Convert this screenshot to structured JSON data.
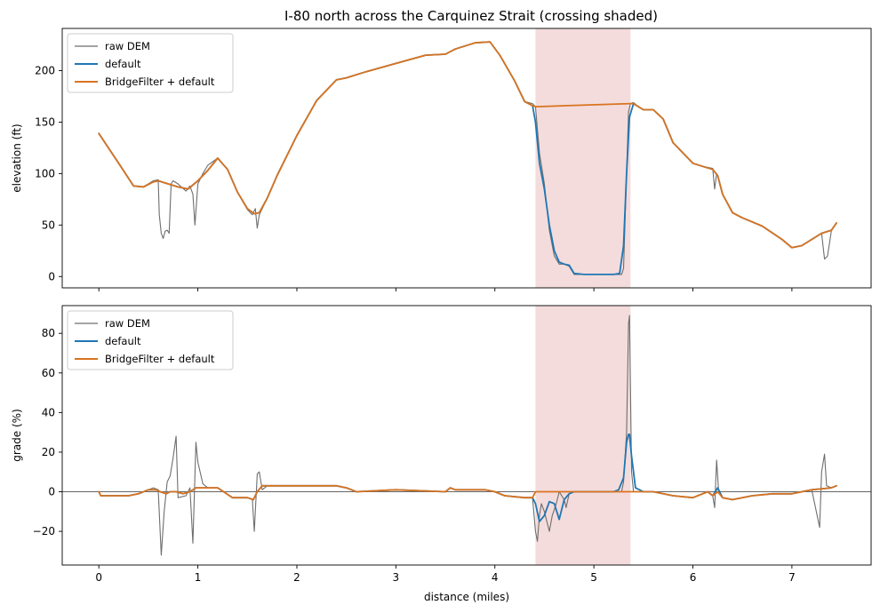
{
  "title": "I-80 north across the Carquinez Strait (crossing shaded)",
  "colors": {
    "raw": "#6e6e6e",
    "default": "#1f77b4",
    "bridge": "#d9731f",
    "shade": "#f4dcdc",
    "zero": "#333333"
  },
  "chart_data": [
    {
      "type": "line",
      "title": "I-80 north across the Carquinez Strait (crossing shaded)",
      "xlabel": "",
      "ylabel": "elevation (ft)",
      "xlim": [
        -0.37,
        7.8
      ],
      "ylim": [
        -11,
        241
      ],
      "xticks": [
        "0",
        "1",
        "2",
        "3",
        "4",
        "5",
        "6",
        "7"
      ],
      "yticks": [
        "0",
        "50",
        "100",
        "150",
        "200"
      ],
      "shaded_span": [
        4.41,
        5.37
      ],
      "legend": [
        "raw DEM",
        "default",
        "BridgeFilter + default"
      ],
      "legend_position": "upper-left",
      "series": [
        {
          "name": "raw DEM",
          "x": [
            0,
            0.2,
            0.35,
            0.45,
            0.55,
            0.6,
            0.61,
            0.63,
            0.65,
            0.67,
            0.69,
            0.71,
            0.73,
            0.75,
            0.8,
            0.88,
            0.92,
            0.95,
            0.97,
            1.0,
            1.05,
            1.1,
            1.2,
            1.3,
            1.4,
            1.5,
            1.55,
            1.58,
            1.6,
            1.62,
            1.7,
            1.8,
            2.0,
            2.2,
            2.4,
            2.5,
            2.7,
            3.0,
            3.3,
            3.5,
            3.6,
            3.8,
            3.95,
            4.05,
            4.2,
            4.3,
            4.38,
            4.41,
            4.45,
            4.5,
            4.55,
            4.6,
            4.65,
            4.7,
            4.75,
            4.8,
            4.9,
            5.0,
            5.1,
            5.2,
            5.28,
            5.3,
            5.33,
            5.35,
            5.37,
            5.4,
            5.45,
            5.5,
            5.6,
            5.7,
            5.8,
            6.0,
            6.1,
            6.2,
            6.22,
            6.24,
            6.26,
            6.3,
            6.4,
            6.5,
            6.7,
            6.9,
            7.0,
            7.1,
            7.2,
            7.3,
            7.33,
            7.36,
            7.4,
            7.45
          ],
          "y": [
            139,
            110,
            88,
            87,
            93,
            94,
            60,
            42,
            37,
            44,
            45,
            42,
            90,
            93,
            90,
            83,
            88,
            80,
            50,
            90,
            100,
            108,
            115,
            104,
            82,
            65,
            60,
            66,
            47,
            60,
            76,
            98,
            137,
            171,
            191,
            193,
            199,
            207,
            215,
            216,
            221,
            227,
            228,
            215,
            190,
            170,
            168,
            165,
            120,
            90,
            45,
            20,
            12,
            12,
            10,
            2,
            2,
            2,
            2,
            2,
            2,
            8,
            100,
            160,
            168,
            169,
            165,
            162,
            162,
            153,
            130,
            110,
            107,
            105,
            85,
            100,
            95,
            80,
            62,
            57,
            49,
            36,
            28,
            30,
            36,
            42,
            17,
            20,
            45,
            52
          ]
        },
        {
          "name": "default",
          "x": [
            0,
            0.2,
            0.35,
            0.45,
            0.55,
            0.6,
            0.7,
            0.8,
            0.9,
            1.0,
            1.1,
            1.2,
            1.3,
            1.4,
            1.5,
            1.57,
            1.62,
            1.7,
            1.8,
            2.0,
            2.2,
            2.4,
            2.5,
            2.7,
            3.0,
            3.3,
            3.5,
            3.6,
            3.8,
            3.95,
            4.05,
            4.2,
            4.3,
            4.38,
            4.41,
            4.45,
            4.5,
            4.55,
            4.6,
            4.65,
            4.7,
            4.75,
            4.8,
            4.9,
            5.0,
            5.1,
            5.2,
            5.26,
            5.3,
            5.33,
            5.36,
            5.4,
            5.45,
            5.5,
            5.6,
            5.7,
            5.8,
            6.0,
            6.1,
            6.2,
            6.25,
            6.3,
            6.4,
            6.5,
            6.7,
            6.9,
            7.0,
            7.1,
            7.2,
            7.3,
            7.4,
            7.45
          ],
          "y": [
            139,
            110,
            88,
            87,
            92,
            93,
            90,
            87,
            85,
            93,
            103,
            115,
            104,
            82,
            66,
            61,
            62,
            76,
            98,
            137,
            171,
            191,
            193,
            199,
            207,
            215,
            216,
            221,
            227,
            228,
            215,
            190,
            170,
            166,
            150,
            110,
            85,
            50,
            25,
            14,
            12,
            11,
            3,
            2,
            2,
            2,
            2,
            3,
            30,
            100,
            155,
            168,
            165,
            162,
            162,
            153,
            130,
            110,
            107,
            104,
            98,
            80,
            62,
            57,
            49,
            36,
            28,
            30,
            36,
            42,
            45,
            52
          ]
        },
        {
          "name": "BridgeFilter + default",
          "x": [
            0,
            0.2,
            0.35,
            0.45,
            0.55,
            0.6,
            0.7,
            0.8,
            0.9,
            1.0,
            1.1,
            1.2,
            1.3,
            1.4,
            1.5,
            1.57,
            1.62,
            1.7,
            1.8,
            2.0,
            2.2,
            2.4,
            2.5,
            2.7,
            3.0,
            3.3,
            3.5,
            3.6,
            3.8,
            3.95,
            4.05,
            4.2,
            4.3,
            4.38,
            4.41,
            5.37,
            5.4,
            5.45,
            5.5,
            5.6,
            5.7,
            5.8,
            6.0,
            6.1,
            6.2,
            6.25,
            6.3,
            6.4,
            6.5,
            6.7,
            6.9,
            7.0,
            7.1,
            7.2,
            7.3,
            7.4,
            7.45
          ],
          "y": [
            139,
            110,
            88,
            87,
            92,
            93,
            90,
            87,
            85,
            93,
            103,
            115,
            104,
            82,
            66,
            61,
            62,
            76,
            98,
            137,
            171,
            191,
            193,
            199,
            207,
            215,
            216,
            221,
            227,
            228,
            215,
            190,
            170,
            166,
            165,
            168,
            168,
            165,
            162,
            162,
            153,
            130,
            110,
            107,
            104,
            98,
            80,
            62,
            57,
            49,
            36,
            28,
            30,
            36,
            42,
            45,
            52
          ]
        }
      ]
    },
    {
      "type": "line",
      "title": "",
      "xlabel": "distance (miles)",
      "ylabel": "grade (%)",
      "xlim": [
        -0.37,
        7.8
      ],
      "ylim": [
        -37,
        94
      ],
      "xticks": [
        "0",
        "1",
        "2",
        "3",
        "4",
        "5",
        "6",
        "7"
      ],
      "yticks": [
        "−20",
        "0",
        "20",
        "40",
        "60",
        "80"
      ],
      "zero_line": true,
      "shaded_span": [
        4.41,
        5.37
      ],
      "legend": [
        "raw DEM",
        "default",
        "BridgeFilter + default"
      ],
      "legend_position": "upper-left",
      "series": [
        {
          "name": "raw DEM",
          "x": [
            0,
            0.02,
            0.3,
            0.4,
            0.55,
            0.6,
            0.63,
            0.66,
            0.69,
            0.72,
            0.75,
            0.78,
            0.8,
            0.88,
            0.92,
            0.95,
            0.98,
            1.0,
            1.05,
            1.1,
            1.2,
            1.35,
            1.5,
            1.55,
            1.57,
            1.6,
            1.62,
            1.65,
            1.7,
            1.8,
            2.0,
            2.2,
            2.4,
            2.5,
            2.6,
            3.0,
            3.5,
            3.55,
            3.6,
            3.9,
            4.0,
            4.1,
            4.3,
            4.38,
            4.41,
            4.43,
            4.45,
            4.47,
            4.5,
            4.55,
            4.58,
            4.62,
            4.65,
            4.7,
            4.72,
            4.75,
            4.8,
            5.0,
            5.2,
            5.28,
            5.3,
            5.33,
            5.35,
            5.36,
            5.38,
            5.4,
            5.5,
            5.6,
            5.8,
            6.0,
            6.15,
            6.2,
            6.22,
            6.24,
            6.26,
            6.3,
            6.4,
            6.6,
            6.8,
            7.0,
            7.2,
            7.28,
            7.3,
            7.33,
            7.35,
            7.4,
            7.45
          ],
          "y": [
            0,
            -2,
            -2,
            -1,
            2,
            1,
            -32,
            -10,
            5,
            8,
            17,
            28,
            -3,
            -2,
            2,
            -26,
            25,
            15,
            4,
            2,
            2,
            -3,
            -3,
            -4,
            -20,
            9,
            10,
            1,
            3,
            3,
            3,
            3,
            3,
            2,
            0,
            1,
            0,
            2,
            1,
            1,
            0,
            -2,
            -3,
            -3,
            -20,
            -25,
            -12,
            -6,
            -10,
            -20,
            -12,
            -6,
            0,
            -4,
            -8,
            -1,
            0,
            0,
            0,
            0,
            5,
            30,
            85,
            89,
            10,
            0,
            0,
            0,
            -2,
            -3,
            0,
            -2,
            -8,
            16,
            0,
            -3,
            -4,
            -2,
            -1,
            -1,
            1,
            -18,
            10,
            19,
            3,
            2,
            3
          ]
        },
        {
          "name": "default",
          "x": [
            0,
            0.02,
            0.3,
            0.4,
            0.5,
            0.58,
            0.62,
            0.68,
            0.72,
            0.78,
            0.85,
            0.92,
            0.98,
            1.05,
            1.2,
            1.35,
            1.5,
            1.56,
            1.6,
            1.65,
            1.7,
            1.8,
            2.0,
            2.2,
            2.4,
            2.5,
            2.6,
            3.0,
            3.5,
            3.55,
            3.6,
            3.9,
            4.0,
            4.1,
            4.3,
            4.38,
            4.41,
            4.45,
            4.5,
            4.55,
            4.6,
            4.65,
            4.7,
            4.75,
            4.8,
            5.0,
            5.2,
            5.25,
            5.3,
            5.33,
            5.35,
            5.36,
            5.38,
            5.42,
            5.5,
            5.6,
            5.8,
            6.0,
            6.15,
            6.2,
            6.25,
            6.3,
            6.4,
            6.6,
            6.8,
            7.0,
            7.2,
            7.4,
            7.45
          ],
          "y": [
            0,
            -2,
            -2,
            -1,
            1,
            1,
            0,
            -1,
            0,
            0,
            -1,
            0,
            2,
            2,
            2,
            -3,
            -3,
            -4,
            0,
            3,
            3,
            3,
            3,
            3,
            3,
            2,
            0,
            1,
            0,
            2,
            1,
            1,
            0,
            -2,
            -3,
            -3,
            -6,
            -15,
            -12,
            -5,
            -6,
            -14,
            -4,
            -1,
            0,
            0,
            0,
            1,
            7,
            25,
            29,
            29,
            18,
            2,
            0,
            0,
            -2,
            -3,
            0,
            -2,
            2,
            -3,
            -4,
            -2,
            -1,
            -1,
            1,
            2,
            3
          ]
        },
        {
          "name": "BridgeFilter + default",
          "x": [
            0,
            0.02,
            0.3,
            0.4,
            0.5,
            0.58,
            0.62,
            0.68,
            0.72,
            0.78,
            0.85,
            0.92,
            0.98,
            1.05,
            1.2,
            1.35,
            1.5,
            1.56,
            1.6,
            1.65,
            1.7,
            1.8,
            2.0,
            2.2,
            2.4,
            2.5,
            2.6,
            3.0,
            3.5,
            3.55,
            3.6,
            3.9,
            4.0,
            4.1,
            4.3,
            4.38,
            4.41,
            5.37,
            5.5,
            5.6,
            5.8,
            6.0,
            6.15,
            6.2,
            6.25,
            6.3,
            6.4,
            6.6,
            6.8,
            7.0,
            7.2,
            7.4,
            7.45
          ],
          "y": [
            0,
            -2,
            -2,
            -1,
            1,
            1,
            0,
            -1,
            0,
            0,
            -1,
            0,
            2,
            2,
            2,
            -3,
            -3,
            -4,
            0,
            3,
            3,
            3,
            3,
            3,
            3,
            2,
            0,
            1,
            0,
            2,
            1,
            1,
            0,
            -2,
            -3,
            -3,
            0,
            0,
            0,
            0,
            -2,
            -3,
            0,
            -2,
            0,
            -3,
            -4,
            -2,
            -1,
            -1,
            1,
            2,
            3
          ]
        }
      ]
    }
  ]
}
